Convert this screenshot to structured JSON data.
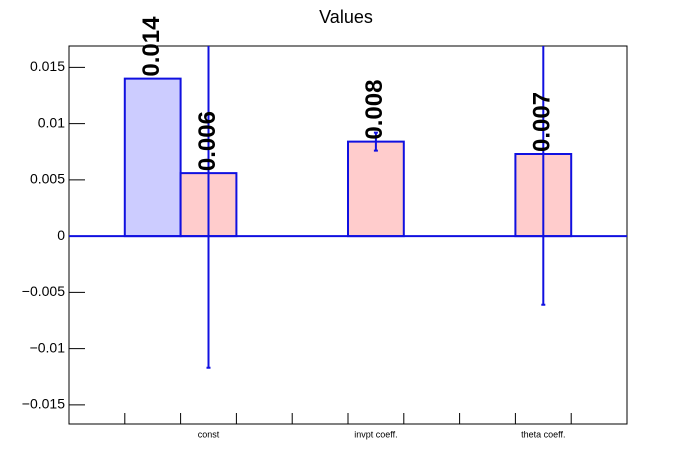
{
  "chart_data": {
    "type": "bar",
    "title": "Values",
    "categories": [
      "const",
      "invpt coeff.",
      "theta coeff."
    ],
    "series": [
      {
        "color": "#ccccff",
        "values": [
          0.014,
          null,
          null
        ],
        "value_labels": [
          "0.014",
          null,
          null
        ]
      },
      {
        "color": "#ffcccc",
        "values": [
          0.0056,
          0.0084,
          0.0073
        ],
        "errors": [
          0.0173,
          0.0008,
          0.0134
        ],
        "value_labels": [
          "0.006",
          "0.008",
          "0.007"
        ]
      }
    ],
    "ylim": [
      -0.0167,
      0.0169
    ],
    "yticks": [
      {
        "value": -0.015,
        "label": "−0.015"
      },
      {
        "value": -0.01,
        "label": "−0.01"
      },
      {
        "value": -0.005,
        "label": "−0.005"
      },
      0,
      0.005,
      0.01,
      0.015
    ],
    "edge_color": "#1010e0"
  }
}
